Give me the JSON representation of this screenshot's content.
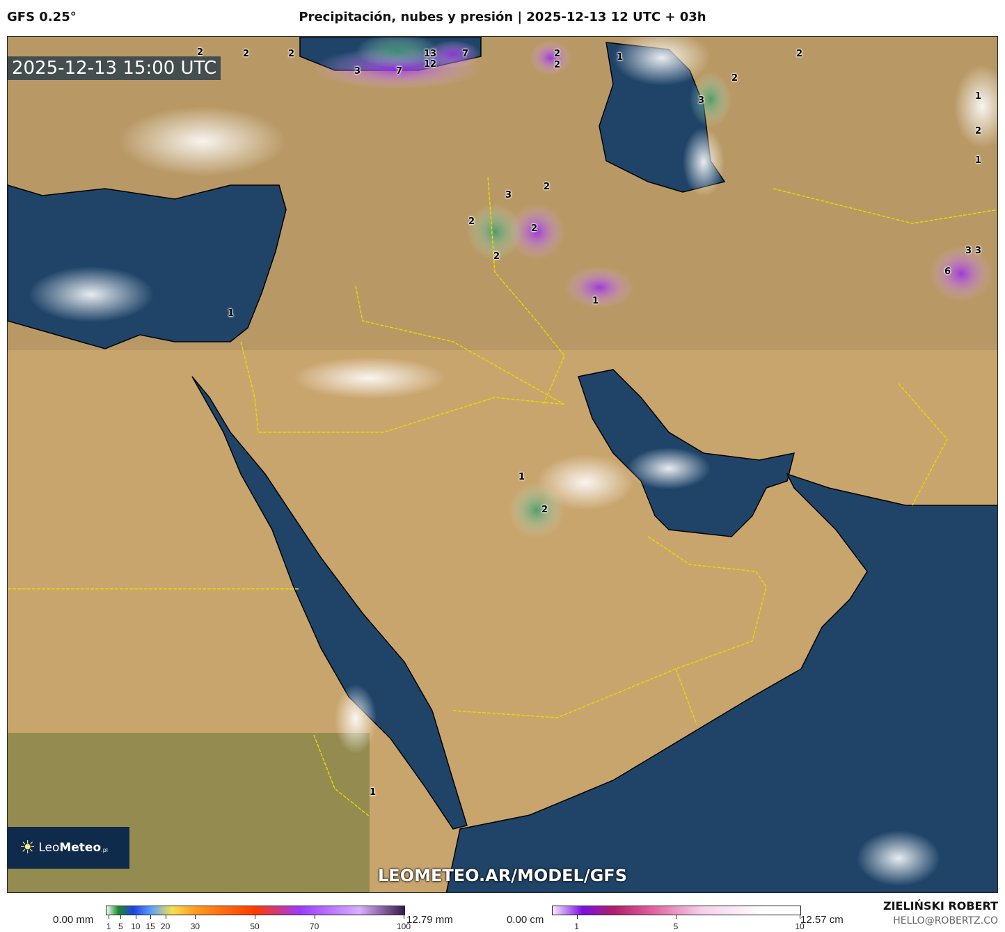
{
  "header": {
    "model": "GFS 0.25°",
    "title": "Precipitación, nubes y presión | 2025-12-13 12 UTC + 03h"
  },
  "map": {
    "timestamp": "2025-12-13 15:00 UTC",
    "precip_labels": [
      "2",
      "2",
      "2",
      "13",
      "7",
      "3",
      "7",
      "12",
      "2",
      "2",
      "1",
      "2",
      "2",
      "3",
      "1",
      "2",
      "1",
      "3",
      "2",
      "2",
      "2",
      "2",
      "3",
      "3",
      "6",
      "1",
      "1",
      "1",
      "2",
      "1"
    ],
    "colors": {
      "land": "#c9a56e",
      "sea": "#1f4468",
      "cloud": "#ffffff",
      "precip": "#b04be8"
    }
  },
  "logo": {
    "name_light": "Leo",
    "name_bold": "Meteo",
    "suffix": ".pl"
  },
  "watermark": "LEOMETEO.AR/MODEL/GFS",
  "legend_precip": {
    "min": "0.00 mm",
    "max": "12.79 mm",
    "ticks": [
      "1",
      "5",
      "10",
      "15",
      "20",
      "30",
      "50",
      "70",
      "100"
    ]
  },
  "legend_snow": {
    "min": "0.00 cm",
    "max": "12.57 cm",
    "ticks": [
      "1",
      "5",
      "10"
    ]
  },
  "credits": {
    "author": "ZIELIŃSKI ROBERT",
    "email": "HELLO@ROBERTZ.CO"
  }
}
